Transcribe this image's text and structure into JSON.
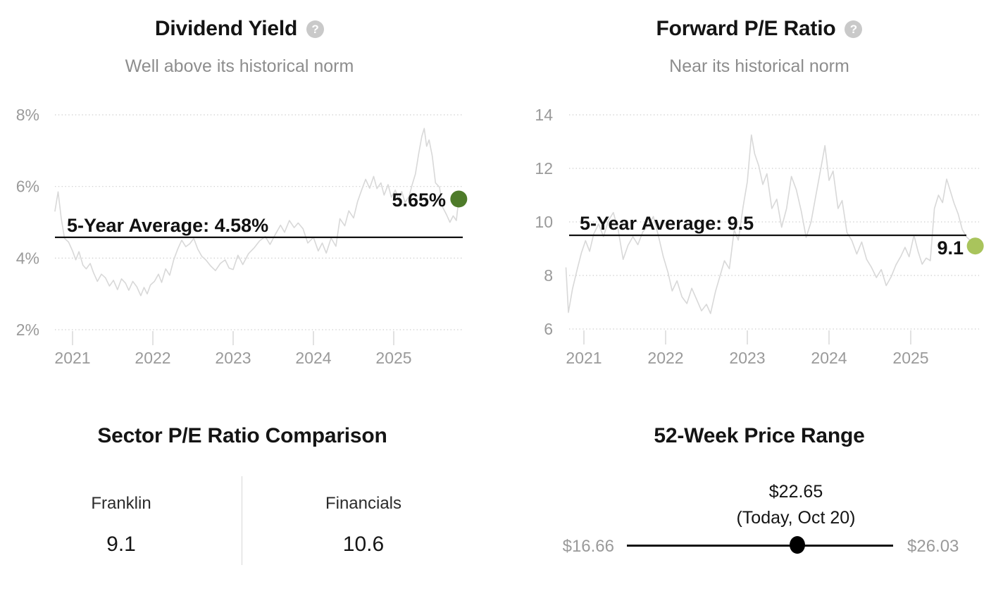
{
  "help_glyph": "?",
  "chart_data": [
    {
      "type": "line",
      "id": "dividend_yield",
      "title": "Dividend Yield",
      "subtitle": "Well above its historical norm",
      "ylim": [
        2,
        8
      ],
      "yticks": [
        {
          "value": 8,
          "label": "8%"
        },
        {
          "value": 6,
          "label": "6%"
        },
        {
          "value": 4,
          "label": "4%"
        },
        {
          "value": 2,
          "label": "2%"
        }
      ],
      "xticks": [
        {
          "value": 2021,
          "label": "2021"
        },
        {
          "value": 2022,
          "label": "2022"
        },
        {
          "value": 2023,
          "label": "2023"
        },
        {
          "value": 2024,
          "label": "2024"
        },
        {
          "value": 2025,
          "label": "2025"
        }
      ],
      "grid": "dotted",
      "average_line": {
        "value": 4.58,
        "label": "5-Year Average: 4.58%"
      },
      "current": {
        "value": 5.65,
        "label": "5.65%",
        "dot_color": "#4e7b2a"
      },
      "points": [
        [
          2020.78,
          5.3
        ],
        [
          2020.82,
          5.85
        ],
        [
          2020.86,
          5.1
        ],
        [
          2020.9,
          4.55
        ],
        [
          2020.95,
          4.45
        ],
        [
          2021.0,
          4.2
        ],
        [
          2021.04,
          3.95
        ],
        [
          2021.08,
          4.18
        ],
        [
          2021.13,
          3.8
        ],
        [
          2021.17,
          3.7
        ],
        [
          2021.22,
          3.85
        ],
        [
          2021.26,
          3.6
        ],
        [
          2021.31,
          3.35
        ],
        [
          2021.36,
          3.55
        ],
        [
          2021.41,
          3.45
        ],
        [
          2021.46,
          3.22
        ],
        [
          2021.51,
          3.38
        ],
        [
          2021.56,
          3.12
        ],
        [
          2021.61,
          3.42
        ],
        [
          2021.66,
          3.3
        ],
        [
          2021.7,
          3.1
        ],
        [
          2021.75,
          3.35
        ],
        [
          2021.8,
          3.2
        ],
        [
          2021.85,
          2.95
        ],
        [
          2021.89,
          3.18
        ],
        [
          2021.93,
          3.0
        ],
        [
          2021.97,
          3.25
        ],
        [
          2022.02,
          3.35
        ],
        [
          2022.07,
          3.55
        ],
        [
          2022.11,
          3.32
        ],
        [
          2022.16,
          3.7
        ],
        [
          2022.21,
          3.52
        ],
        [
          2022.26,
          3.95
        ],
        [
          2022.31,
          4.25
        ],
        [
          2022.36,
          4.5
        ],
        [
          2022.41,
          4.32
        ],
        [
          2022.46,
          4.4
        ],
        [
          2022.51,
          4.55
        ],
        [
          2022.56,
          4.25
        ],
        [
          2022.61,
          4.05
        ],
        [
          2022.66,
          3.95
        ],
        [
          2022.72,
          3.78
        ],
        [
          2022.78,
          3.65
        ],
        [
          2022.84,
          3.85
        ],
        [
          2022.9,
          3.95
        ],
        [
          2022.95,
          3.72
        ],
        [
          2023.0,
          3.68
        ],
        [
          2023.06,
          4.08
        ],
        [
          2023.12,
          3.82
        ],
        [
          2023.19,
          4.12
        ],
        [
          2023.26,
          4.28
        ],
        [
          2023.33,
          4.48
        ],
        [
          2023.4,
          4.6
        ],
        [
          2023.46,
          4.38
        ],
        [
          2023.53,
          4.68
        ],
        [
          2023.59,
          4.92
        ],
        [
          2023.64,
          4.72
        ],
        [
          2023.7,
          5.05
        ],
        [
          2023.76,
          4.85
        ],
        [
          2023.81,
          4.98
        ],
        [
          2023.87,
          4.82
        ],
        [
          2023.93,
          4.42
        ],
        [
          2024.0,
          4.58
        ],
        [
          2024.06,
          4.2
        ],
        [
          2024.11,
          4.42
        ],
        [
          2024.16,
          4.14
        ],
        [
          2024.22,
          4.56
        ],
        [
          2024.28,
          4.33
        ],
        [
          2024.33,
          5.1
        ],
        [
          2024.39,
          4.9
        ],
        [
          2024.44,
          5.32
        ],
        [
          2024.5,
          5.12
        ],
        [
          2024.55,
          5.58
        ],
        [
          2024.6,
          5.9
        ],
        [
          2024.65,
          6.2
        ],
        [
          2024.7,
          5.95
        ],
        [
          2024.75,
          6.28
        ],
        [
          2024.79,
          5.94
        ],
        [
          2024.84,
          6.1
        ],
        [
          2024.88,
          5.76
        ],
        [
          2024.93,
          6.05
        ],
        [
          2024.97,
          5.7
        ],
        [
          2025.02,
          5.9
        ],
        [
          2025.06,
          5.62
        ],
        [
          2025.1,
          5.86
        ],
        [
          2025.14,
          5.55
        ],
        [
          2025.19,
          5.72
        ],
        [
          2025.23,
          6.05
        ],
        [
          2025.27,
          6.35
        ],
        [
          2025.31,
          6.9
        ],
        [
          2025.35,
          7.4
        ],
        [
          2025.38,
          7.62
        ],
        [
          2025.41,
          7.12
        ],
        [
          2025.44,
          7.3
        ],
        [
          2025.48,
          6.85
        ],
        [
          2025.52,
          6.1
        ],
        [
          2025.57,
          5.98
        ],
        [
          2025.61,
          5.42
        ],
        [
          2025.66,
          5.2
        ],
        [
          2025.7,
          5.0
        ],
        [
          2025.74,
          5.18
        ],
        [
          2025.78,
          5.05
        ],
        [
          2025.81,
          5.65
        ]
      ]
    },
    {
      "type": "line",
      "id": "forward_pe",
      "title": "Forward P/E Ratio",
      "subtitle": "Near its historical norm",
      "ylim": [
        6,
        14
      ],
      "yticks": [
        {
          "value": 14,
          "label": "14"
        },
        {
          "value": 12,
          "label": "12"
        },
        {
          "value": 10,
          "label": "10"
        },
        {
          "value": 8,
          "label": "8"
        },
        {
          "value": 6,
          "label": "6"
        }
      ],
      "xticks": [
        {
          "value": 2021,
          "label": "2021"
        },
        {
          "value": 2022,
          "label": "2022"
        },
        {
          "value": 2023,
          "label": "2023"
        },
        {
          "value": 2024,
          "label": "2024"
        },
        {
          "value": 2025,
          "label": "2025"
        }
      ],
      "grid": "dotted",
      "average_line": {
        "value": 9.5,
        "label": "5-Year Average: 9.5"
      },
      "current": {
        "value": 9.1,
        "label": "9.1",
        "dot_color": "#a9c45c"
      },
      "points": [
        [
          2020.78,
          8.3
        ],
        [
          2020.81,
          6.62
        ],
        [
          2020.86,
          7.5
        ],
        [
          2020.92,
          8.25
        ],
        [
          2020.97,
          8.85
        ],
        [
          2021.02,
          9.3
        ],
        [
          2021.07,
          8.9
        ],
        [
          2021.12,
          9.55
        ],
        [
          2021.18,
          9.92
        ],
        [
          2021.24,
          9.45
        ],
        [
          2021.3,
          10.05
        ],
        [
          2021.36,
          10.35
        ],
        [
          2021.42,
          9.7
        ],
        [
          2021.48,
          8.6
        ],
        [
          2021.54,
          9.12
        ],
        [
          2021.6,
          9.45
        ],
        [
          2021.66,
          9.15
        ],
        [
          2021.72,
          9.62
        ],
        [
          2021.78,
          9.85
        ],
        [
          2021.85,
          10.2
        ],
        [
          2021.91,
          9.5
        ],
        [
          2021.97,
          8.72
        ],
        [
          2022.03,
          8.1
        ],
        [
          2022.08,
          7.42
        ],
        [
          2022.14,
          7.8
        ],
        [
          2022.2,
          7.2
        ],
        [
          2022.26,
          6.95
        ],
        [
          2022.32,
          7.52
        ],
        [
          2022.38,
          7.1
        ],
        [
          2022.44,
          6.68
        ],
        [
          2022.5,
          6.92
        ],
        [
          2022.55,
          6.58
        ],
        [
          2022.61,
          7.4
        ],
        [
          2022.67,
          8.02
        ],
        [
          2022.72,
          8.55
        ],
        [
          2022.78,
          8.25
        ],
        [
          2022.84,
          9.7
        ],
        [
          2022.89,
          9.32
        ],
        [
          2022.95,
          10.6
        ],
        [
          2023.0,
          11.5
        ],
        [
          2023.05,
          13.25
        ],
        [
          2023.09,
          12.55
        ],
        [
          2023.14,
          12.1
        ],
        [
          2023.19,
          11.4
        ],
        [
          2023.24,
          11.8
        ],
        [
          2023.3,
          10.5
        ],
        [
          2023.36,
          10.85
        ],
        [
          2023.42,
          9.8
        ],
        [
          2023.48,
          10.5
        ],
        [
          2023.54,
          11.7
        ],
        [
          2023.6,
          11.2
        ],
        [
          2023.66,
          10.4
        ],
        [
          2023.72,
          9.42
        ],
        [
          2023.78,
          10.0
        ],
        [
          2023.84,
          11.0
        ],
        [
          2023.9,
          12.0
        ],
        [
          2023.95,
          12.85
        ],
        [
          2024.0,
          11.55
        ],
        [
          2024.05,
          11.9
        ],
        [
          2024.11,
          10.5
        ],
        [
          2024.16,
          10.8
        ],
        [
          2024.22,
          9.6
        ],
        [
          2024.28,
          9.3
        ],
        [
          2024.34,
          8.8
        ],
        [
          2024.4,
          9.25
        ],
        [
          2024.46,
          8.6
        ],
        [
          2024.52,
          8.3
        ],
        [
          2024.58,
          7.92
        ],
        [
          2024.64,
          8.22
        ],
        [
          2024.7,
          7.62
        ],
        [
          2024.76,
          7.95
        ],
        [
          2024.82,
          8.4
        ],
        [
          2024.88,
          8.72
        ],
        [
          2024.93,
          9.05
        ],
        [
          2024.98,
          8.7
        ],
        [
          2025.04,
          9.5
        ],
        [
          2025.09,
          8.9
        ],
        [
          2025.14,
          8.42
        ],
        [
          2025.19,
          8.65
        ],
        [
          2025.24,
          8.55
        ],
        [
          2025.29,
          10.5
        ],
        [
          2025.34,
          11.0
        ],
        [
          2025.39,
          10.72
        ],
        [
          2025.44,
          11.6
        ],
        [
          2025.48,
          11.2
        ],
        [
          2025.53,
          10.7
        ],
        [
          2025.58,
          10.3
        ],
        [
          2025.63,
          9.72
        ],
        [
          2025.68,
          9.45
        ],
        [
          2025.73,
          9.3
        ],
        [
          2025.79,
          9.1
        ]
      ]
    },
    {
      "type": "comparison",
      "id": "sector_pe_comparison",
      "title": "Sector P/E Ratio Comparison",
      "items": [
        {
          "label": "Franklin",
          "value": "9.1"
        },
        {
          "label": "Financials",
          "value": "10.6"
        }
      ]
    },
    {
      "type": "range",
      "id": "price_range_52w",
      "title": "52-Week Price Range",
      "low_label": "$16.66",
      "high_label": "$26.03",
      "current_label": "$22.65",
      "current_note": "(Today, Oct 20)",
      "low": 16.66,
      "high": 26.03,
      "current": 22.65
    }
  ]
}
